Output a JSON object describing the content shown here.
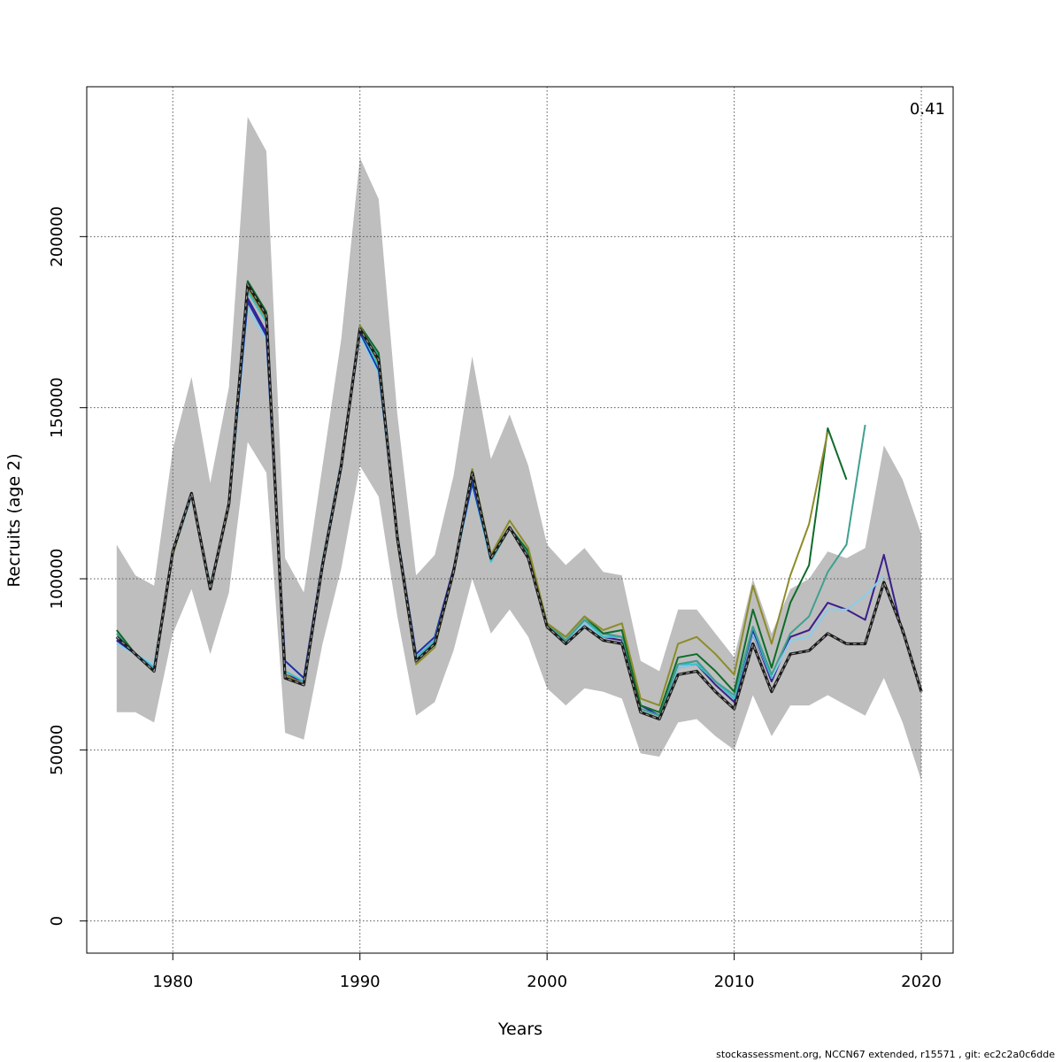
{
  "chart_data": {
    "type": "line",
    "xlabel": "Years",
    "ylabel": "Recruits (age 2)",
    "annotation": "0.41",
    "xlim": [
      1975.4,
      2021.7
    ],
    "ylim": [
      -9400,
      243800
    ],
    "x_ticks": [
      1980,
      1990,
      2000,
      2010,
      2020
    ],
    "y_ticks": [
      0,
      50000,
      100000,
      150000,
      200000
    ],
    "grid": true,
    "colors": {
      "band": "#bebebe",
      "final": "#1a1a1a",
      "retro_1": "#3b1e8c",
      "retro_2": "#87ceeb",
      "retro_3": "#40a090",
      "retro_4": "#0e6b2a",
      "retro_5": "#8c8c2a",
      "mid_1": "#1d2fa8",
      "mid_2": "#38c0c8"
    },
    "confidence_band": {
      "x": [
        1977,
        1978,
        1979,
        1980,
        1981,
        1982,
        1983,
        1984,
        1985,
        1986,
        1987,
        1988,
        1989,
        1990,
        1991,
        1992,
        1993,
        1994,
        1995,
        1996,
        1997,
        1998,
        1999,
        2000,
        2001,
        2002,
        2003,
        2004,
        2005,
        2006,
        2007,
        2008,
        2009,
        2010,
        2011,
        2012,
        2013,
        2014,
        2015,
        2016,
        2017,
        2018,
        2019,
        2020
      ],
      "upper": [
        110000,
        101000,
        98000,
        138000,
        159000,
        128000,
        156000,
        235000,
        225000,
        106000,
        96000,
        133000,
        170000,
        223000,
        211000,
        148000,
        101000,
        107000,
        130000,
        165000,
        135000,
        148000,
        133000,
        110000,
        104000,
        109000,
        102000,
        101000,
        76000,
        73000,
        91000,
        91000,
        84000,
        77000,
        100000,
        84000,
        97000,
        100000,
        108000,
        106000,
        109000,
        139000,
        129000,
        113000
      ],
      "lower": [
        61000,
        61000,
        58000,
        84000,
        97000,
        78000,
        96000,
        140000,
        131000,
        55000,
        53000,
        81000,
        103000,
        133000,
        124000,
        89000,
        60000,
        64000,
        79000,
        100000,
        84000,
        91000,
        83000,
        68000,
        63000,
        68000,
        67000,
        65000,
        49000,
        48000,
        58000,
        59000,
        54000,
        50000,
        66000,
        54000,
        63000,
        63000,
        66000,
        63000,
        60000,
        71000,
        58000,
        41000
      ]
    },
    "series": [
      {
        "color_key": "final",
        "style": "dashed-thick",
        "x": [
          1977,
          1978,
          1979,
          1980,
          1981,
          1982,
          1983,
          1984,
          1985,
          1986,
          1987,
          1988,
          1989,
          1990,
          1991,
          1992,
          1993,
          1994,
          1995,
          1996,
          1997,
          1998,
          1999,
          2000,
          2001,
          2002,
          2003,
          2004,
          2005,
          2006,
          2007,
          2008,
          2009,
          2010,
          2011,
          2012,
          2013,
          2014,
          2015,
          2016,
          2017,
          2018,
          2019,
          2020
        ],
        "values": [
          83000,
          78000,
          73000,
          108000,
          125000,
          97000,
          122000,
          186000,
          177000,
          71000,
          69000,
          104000,
          133000,
          173000,
          164000,
          112000,
          76000,
          81000,
          102000,
          131000,
          106000,
          115000,
          106000,
          86000,
          81000,
          86000,
          82000,
          81000,
          61000,
          59000,
          72000,
          73000,
          67000,
          62000,
          81000,
          67000,
          78000,
          79000,
          84000,
          81000,
          81000,
          99000,
          85000,
          67000
        ]
      },
      {
        "color_key": "retro_1",
        "style": "solid",
        "x": [
          1977,
          1978,
          1979,
          1980,
          1981,
          1982,
          1983,
          1984,
          1985,
          1986,
          1987,
          1988,
          1989,
          1990,
          1991,
          1992,
          1993,
          1994,
          1995,
          1996,
          1997,
          1998,
          1999,
          2000,
          2001,
          2002,
          2003,
          2004,
          2005,
          2006,
          2007,
          2008,
          2009,
          2010,
          2011,
          2012,
          2013,
          2014,
          2015,
          2016,
          2017,
          2018,
          2019
        ],
        "values": [
          82000,
          78000,
          74000,
          108000,
          125000,
          97000,
          122000,
          182000,
          172000,
          72000,
          70000,
          105000,
          134000,
          173000,
          162000,
          113000,
          77000,
          82000,
          103000,
          129000,
          106000,
          115000,
          107000,
          86000,
          82000,
          87000,
          83000,
          82000,
          62000,
          60000,
          74000,
          75000,
          69000,
          64000,
          84000,
          70000,
          83000,
          85000,
          93000,
          91000,
          88000,
          107000,
          84000
        ]
      },
      {
        "color_key": "retro_2",
        "style": "solid",
        "x": [
          1977,
          1978,
          1979,
          1980,
          1981,
          1982,
          1983,
          1984,
          1985,
          1986,
          1987,
          1988,
          1989,
          1990,
          1991,
          1992,
          1993,
          1994,
          1995,
          1996,
          1997,
          1998,
          1999,
          2000,
          2001,
          2002,
          2003,
          2004,
          2005,
          2006,
          2007,
          2008,
          2009,
          2010,
          2011,
          2012,
          2013,
          2014,
          2015,
          2016,
          2017,
          2018
        ],
        "values": [
          81000,
          78000,
          75000,
          107000,
          124000,
          98000,
          121000,
          179000,
          170000,
          76000,
          71000,
          104000,
          133000,
          171000,
          160000,
          112000,
          78000,
          83000,
          102000,
          127000,
          105000,
          115000,
          108000,
          86000,
          82000,
          87000,
          83000,
          83000,
          62000,
          60000,
          74000,
          75000,
          70000,
          65000,
          84000,
          71000,
          82000,
          83000,
          91000,
          91000,
          95000,
          101000
        ]
      },
      {
        "color_key": "mid_1",
        "style": "solid",
        "x": [
          1977,
          1978,
          1979,
          1980,
          1981,
          1982,
          1983,
          1984,
          1985,
          1986,
          1987,
          1988,
          1989,
          1990,
          1991,
          1992,
          1993,
          1994,
          1995,
          1996,
          1997,
          1998,
          1999,
          2000,
          2001,
          2002,
          2003,
          2004,
          2005,
          2006,
          2007,
          2008,
          2009,
          2010,
          2011,
          2012
        ],
        "values": [
          82000,
          78000,
          74000,
          108000,
          125000,
          97000,
          122000,
          181000,
          171000,
          76000,
          71000,
          105000,
          134000,
          172000,
          161000,
          113000,
          78000,
          83000,
          103000,
          128000,
          106000,
          115000,
          108000,
          86000,
          82000,
          88000,
          84000,
          83000,
          63000,
          60000,
          75000,
          76000,
          70000,
          65000,
          85000,
          71000
        ]
      },
      {
        "color_key": "mid_2",
        "style": "solid",
        "x": [
          1977,
          1978,
          1979,
          1980,
          1981,
          1982,
          1983,
          1984,
          1985,
          1986,
          1987,
          1988,
          1989,
          1990,
          1991,
          1992,
          1993,
          1994,
          1995,
          1996,
          1997,
          1998,
          1999,
          2000,
          2001,
          2002,
          2003,
          2004,
          2005,
          2006,
          2007,
          2008,
          2009,
          2010,
          2011,
          2012
        ],
        "values": [
          83000,
          78000,
          74000,
          108000,
          125000,
          98000,
          122000,
          184000,
          175000,
          73000,
          70000,
          105000,
          134000,
          173000,
          162000,
          113000,
          77000,
          82000,
          102000,
          130000,
          105000,
          115000,
          107000,
          86000,
          82000,
          88000,
          83000,
          83000,
          62000,
          60000,
          75000,
          75000,
          70000,
          65000,
          86000,
          71000
        ]
      },
      {
        "color_key": "retro_3",
        "style": "solid",
        "x": [
          1977,
          1978,
          1979,
          1980,
          1981,
          1982,
          1983,
          1984,
          1985,
          1986,
          1987,
          1988,
          1989,
          1990,
          1991,
          1992,
          1993,
          1994,
          1995,
          1996,
          1997,
          1998,
          1999,
          2000,
          2001,
          2002,
          2003,
          2004,
          2005,
          2006,
          2007,
          2008,
          2009,
          2010,
          2011,
          2012,
          2013,
          2014,
          2015,
          2016,
          2017
        ],
        "values": [
          84000,
          78000,
          73000,
          108000,
          125000,
          97000,
          122000,
          186000,
          177000,
          71000,
          69000,
          104000,
          133000,
          173000,
          165000,
          112000,
          76000,
          81000,
          102000,
          131000,
          106000,
          115000,
          107000,
          87000,
          82000,
          88000,
          84000,
          83000,
          62000,
          60000,
          75000,
          76000,
          70000,
          66000,
          86000,
          72000,
          84000,
          89000,
          102000,
          110000,
          145000
        ]
      },
      {
        "color_key": "retro_4",
        "style": "solid",
        "x": [
          1977,
          1978,
          1979,
          1980,
          1981,
          1982,
          1983,
          1984,
          1985,
          1986,
          1987,
          1988,
          1989,
          1990,
          1991,
          1992,
          1993,
          1994,
          1995,
          1996,
          1997,
          1998,
          1999,
          2000,
          2001,
          2002,
          2003,
          2004,
          2005,
          2006,
          2007,
          2008,
          2009,
          2010,
          2011,
          2012,
          2013,
          2014,
          2015,
          2016
        ],
        "values": [
          85000,
          78000,
          73000,
          108000,
          125000,
          97000,
          122000,
          187000,
          178000,
          71000,
          69000,
          104000,
          133000,
          174000,
          166000,
          112000,
          76000,
          81000,
          102000,
          132000,
          107000,
          115000,
          108000,
          87000,
          83000,
          89000,
          84000,
          85000,
          63000,
          61000,
          77000,
          78000,
          73000,
          67000,
          91000,
          74000,
          93000,
          104000,
          144000,
          129000
        ]
      },
      {
        "color_key": "retro_5",
        "style": "solid",
        "x": [
          1977,
          1978,
          1979,
          1980,
          1981,
          1982,
          1983,
          1984,
          1985,
          1986,
          1987,
          1988,
          1989,
          1990,
          1991,
          1992,
          1993,
          1994,
          1995,
          1996,
          1997,
          1998,
          1999,
          2000,
          2001,
          2002,
          2003,
          2004,
          2005,
          2006,
          2007,
          2008,
          2009,
          2010,
          2011,
          2012,
          2013,
          2014,
          2015
        ],
        "values": [
          83000,
          78000,
          73000,
          107000,
          125000,
          97000,
          121000,
          185000,
          176000,
          72000,
          69000,
          104000,
          133000,
          174000,
          163000,
          111000,
          75000,
          80000,
          102000,
          132000,
          107000,
          117000,
          109000,
          87000,
          83000,
          89000,
          85000,
          87000,
          65000,
          63000,
          81000,
          83000,
          78000,
          72000,
          98000,
          81000,
          101000,
          116000,
          143000
        ]
      }
    ]
  },
  "footer_text": "stockassessment.org, NCCN67 extended, r15571 , git: ec2c2a0c6dde"
}
